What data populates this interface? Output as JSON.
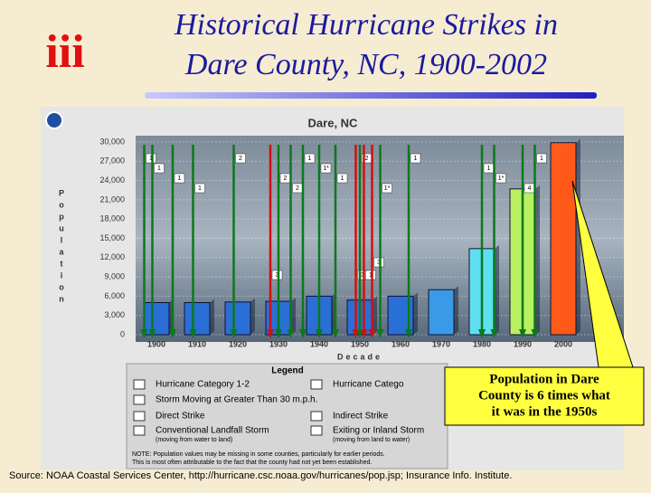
{
  "title_lines": [
    "Historical Hurricane Strikes in",
    "Dare County, NC, 1900-2002"
  ],
  "logo": "iii",
  "chart_data": {
    "type": "bar",
    "title": "Dare, NC",
    "y_label": "Population",
    "x_label": "Decade",
    "categories": [
      "1900",
      "1910",
      "1920",
      "1930",
      "1940",
      "1950",
      "1960",
      "1970",
      "1980",
      "1990",
      "2000"
    ],
    "values": [
      5000,
      5000,
      5100,
      5200,
      6000,
      5400,
      6000,
      7000,
      13400,
      22700,
      29900
    ],
    "colors": [
      "#2a6fd6",
      "#2a6fd6",
      "#2a6fd6",
      "#2a6fd6",
      "#2a6fd6",
      "#2a6fd6",
      "#2a6fd6",
      "#3a9ae8",
      "#5fe0f0",
      "#b8f060",
      "#ff5a1a"
    ],
    "ylim": [
      0,
      30000
    ],
    "yticks": [
      0,
      {
        "value": 3000,
        "label": "3,000"
      },
      {
        "value": 6000,
        "label": "6,000"
      },
      {
        "value": 9000,
        "label": "9,000"
      },
      {
        "value": 12000,
        "label": "12,000"
      },
      {
        "value": 15000,
        "label": "15,000"
      },
      {
        "value": 18000,
        "label": "18,000"
      },
      {
        "value": 21000,
        "label": "21,000"
      },
      {
        "value": 24000,
        "label": "24,000"
      },
      {
        "value": 27000,
        "label": "27,000"
      },
      {
        "value": 30000,
        "label": "30,000"
      }
    ],
    "strikes": [
      {
        "year": 1897,
        "label": "1",
        "kind": "landfall"
      },
      {
        "year": 1899,
        "label": "1",
        "kind": "landfall"
      },
      {
        "year": 1904,
        "label": "1",
        "kind": "landfall"
      },
      {
        "year": 1909,
        "label": "1",
        "kind": "landfall"
      },
      {
        "year": 1919,
        "label": "2",
        "kind": "landfall"
      },
      {
        "year": 1928,
        "label": "3",
        "kind": "direct"
      },
      {
        "year": 1930,
        "label": "2",
        "kind": "landfall"
      },
      {
        "year": 1933,
        "label": "2",
        "kind": "landfall"
      },
      {
        "year": 1936,
        "label": "1",
        "kind": "landfall"
      },
      {
        "year": 1940,
        "label": "1*",
        "kind": "landfall"
      },
      {
        "year": 1944,
        "label": "1",
        "kind": "landfall"
      },
      {
        "year": 1949,
        "label": "3",
        "kind": "direct"
      },
      {
        "year": 1950,
        "label": "2",
        "kind": "landfall"
      },
      {
        "year": 1951,
        "label": "1",
        "kind": "direct"
      },
      {
        "year": 1953,
        "label": "3",
        "kind": "direct"
      },
      {
        "year": 1955,
        "label": "1*",
        "kind": "landfall"
      },
      {
        "year": 1962,
        "label": "1",
        "kind": "landfall"
      },
      {
        "year": 1980,
        "label": "1",
        "kind": "landfall"
      },
      {
        "year": 1983,
        "label": "1*",
        "kind": "landfall"
      },
      {
        "year": 1990,
        "label": "4",
        "kind": "landfall"
      },
      {
        "year": 1993,
        "label": "1",
        "kind": "landfall"
      }
    ],
    "legend": {
      "title": "Legend",
      "items": [
        "Hurricane Category 1-2",
        "Hurricane Catego",
        "Storm Moving at Greater Than 30 m.p.h.",
        "Direct Strike",
        "Indirect Strike",
        "Conventional Landfall Storm",
        "Exiting or Inland Storm"
      ],
      "subs": [
        "(moving from water to land)",
        "(moving from land to water)"
      ],
      "note": [
        "NOTE: Population values may be missing in some counties, particularly for earlier periods.",
        "This is most often attributable to the fact that the county had not yet been established."
      ]
    }
  },
  "callout": [
    "Population in Dare",
    "County is 6 times what",
    "it was in the 1950s"
  ],
  "source": "Source: NOAA Coastal Services Center, http://hurricane.csc.noaa.gov/hurricanes/pop.jsp; Insurance Info. Institute."
}
